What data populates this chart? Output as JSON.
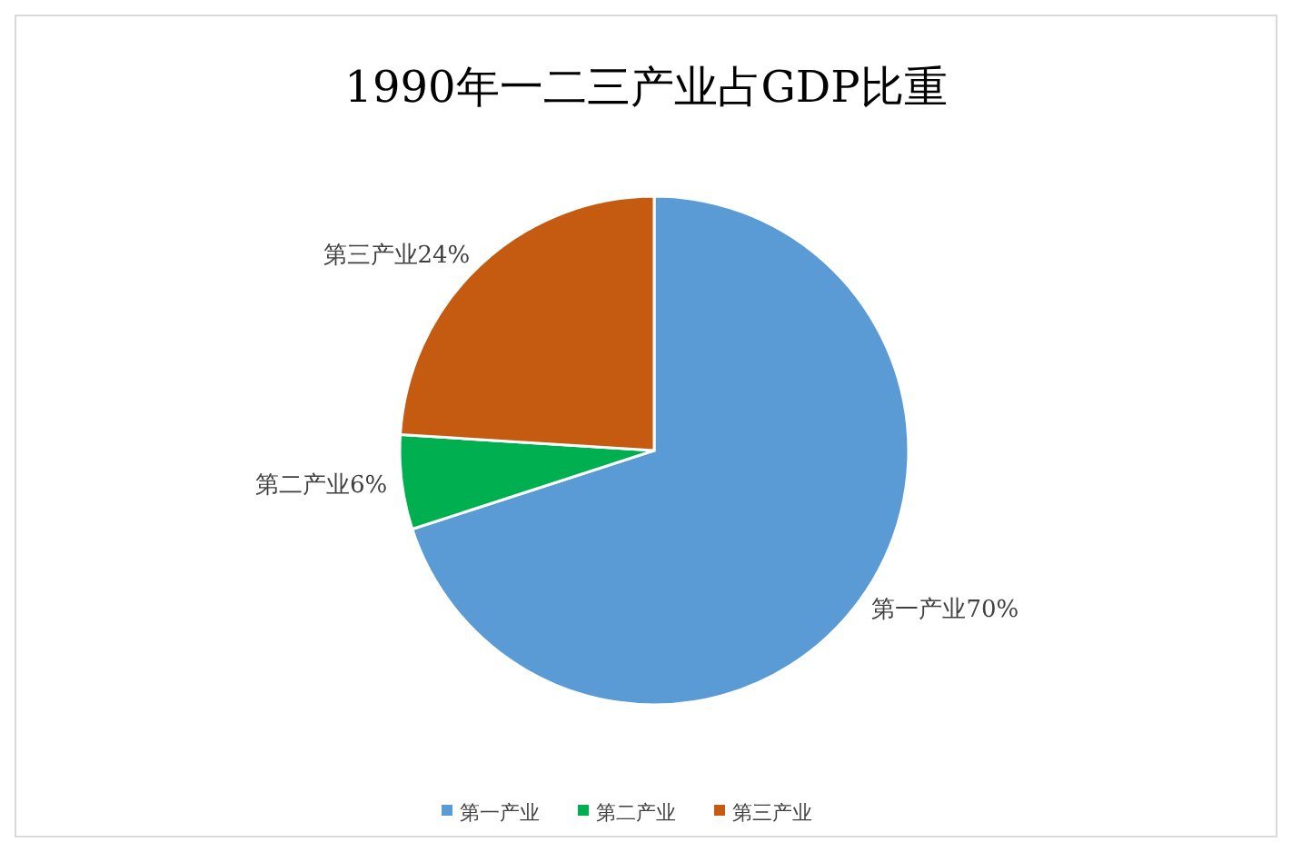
{
  "chart_data": {
    "type": "pie",
    "title": "1990年一二三产业占GDP比重",
    "categories": [
      "第一产业",
      "第二产业",
      "第三产业"
    ],
    "values": [
      70,
      6,
      24
    ],
    "colors": [
      "#5b9bd5",
      "#00b050",
      "#c55a11"
    ],
    "value_labels": [
      "第一产业70%",
      "第二产业6%",
      "第三产业24%"
    ],
    "legend": "bottom"
  }
}
